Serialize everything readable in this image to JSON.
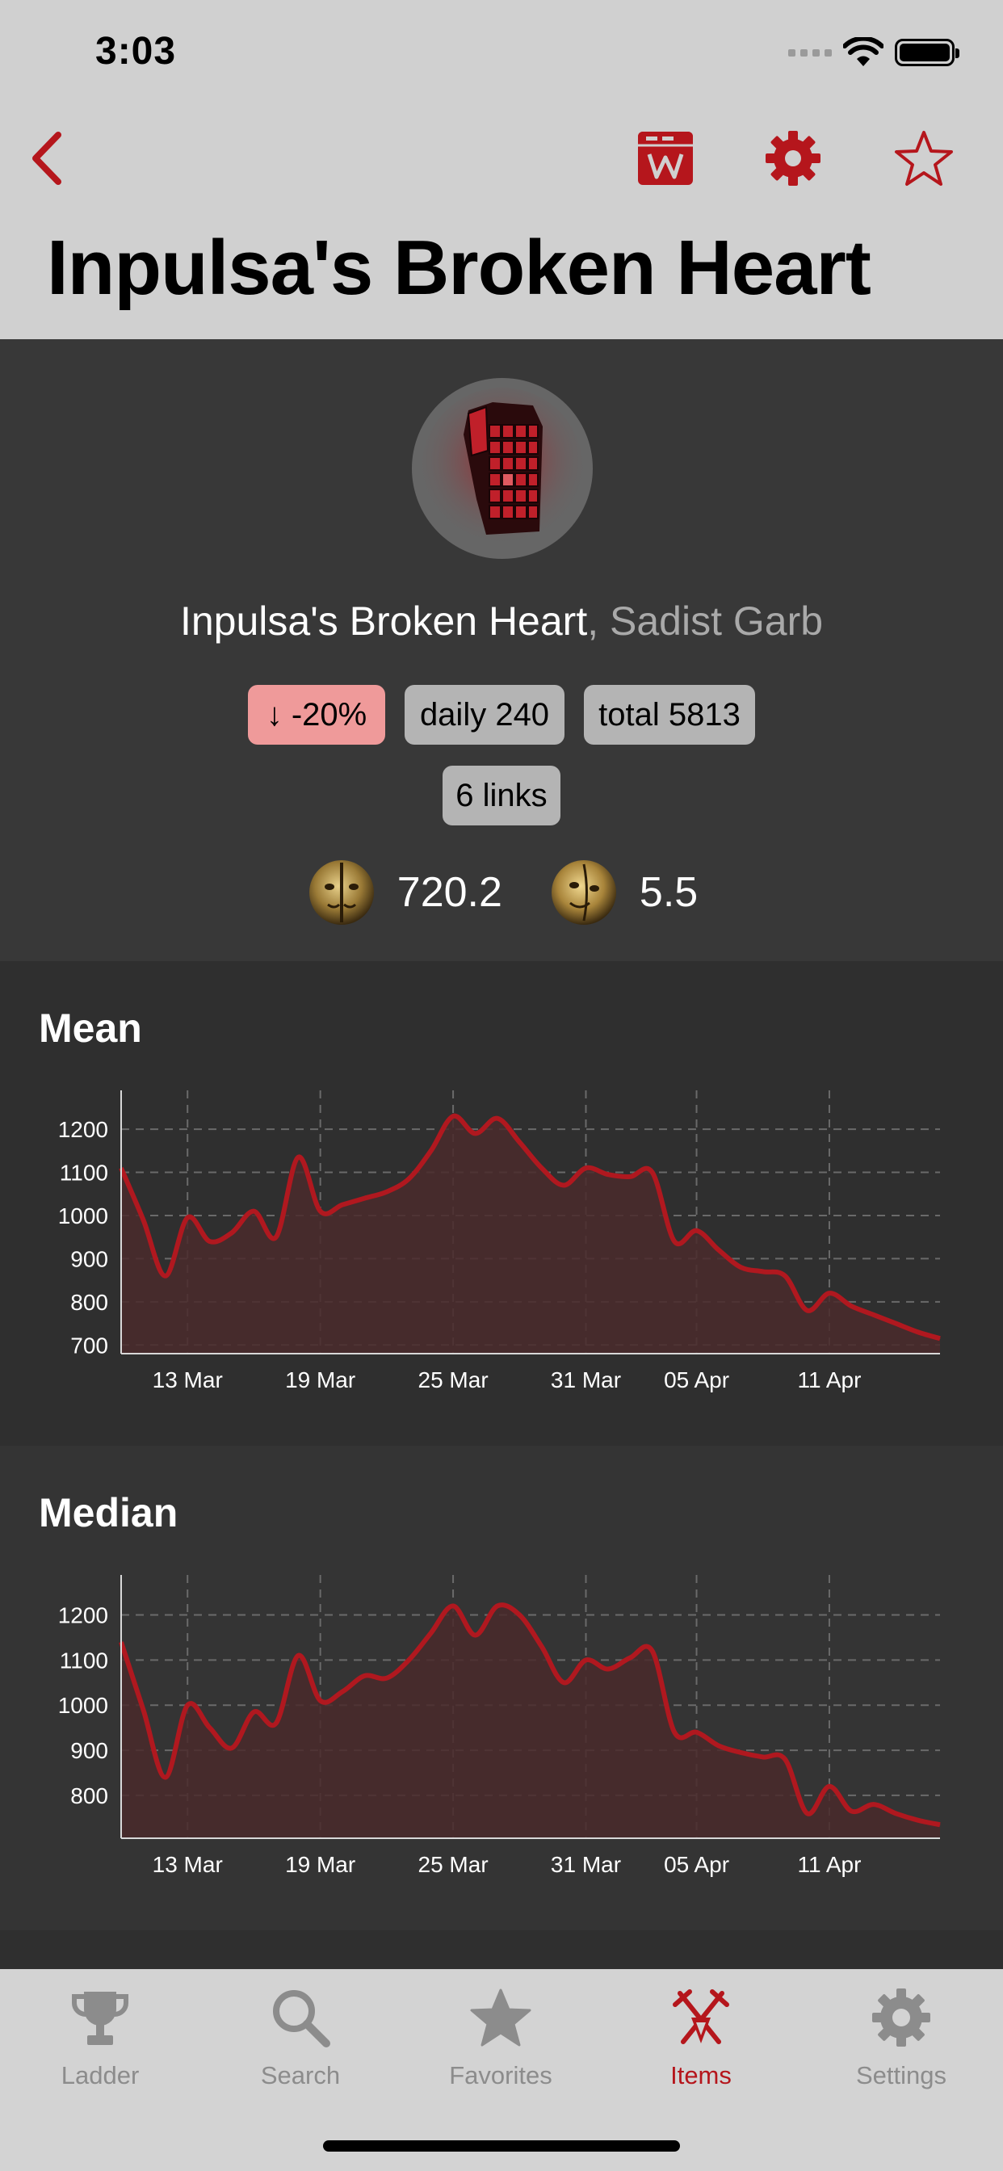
{
  "status_bar": {
    "time": "3:03"
  },
  "header": {
    "title": "Inpulsa's Broken Heart"
  },
  "item": {
    "name": "Inpulsa's Broken Heart",
    "separator": ", ",
    "base_type": "Sadist Garb",
    "badges": {
      "change": "↓ -20%",
      "daily": "daily 240",
      "total": "total 5813",
      "links": "6 links"
    },
    "prices": [
      {
        "icon": "divine-orb-icon",
        "value": "720.2"
      },
      {
        "icon": "exalted-orb-icon",
        "value": "5.5"
      }
    ]
  },
  "colors": {
    "accent": "#b5161c",
    "badge_down": "#ef9a9a",
    "line": "#b0181f",
    "area": "#4a2a2c"
  },
  "chart_data": [
    {
      "type": "area",
      "title": "Mean",
      "x": [
        "10 Mar",
        "11 Mar",
        "12 Mar",
        "13 Mar",
        "14 Mar",
        "15 Mar",
        "16 Mar",
        "17 Mar",
        "18 Mar",
        "19 Mar",
        "20 Mar",
        "21 Mar",
        "22 Mar",
        "23 Mar",
        "24 Mar",
        "25 Mar",
        "26 Mar",
        "27 Mar",
        "28 Mar",
        "29 Mar",
        "30 Mar",
        "31 Mar",
        "01 Apr",
        "02 Apr",
        "03 Apr",
        "04 Apr",
        "05 Apr",
        "06 Apr",
        "07 Apr",
        "08 Apr",
        "09 Apr",
        "10 Apr",
        "11 Apr",
        "12 Apr",
        "13 Apr",
        "14 Apr",
        "15 Apr",
        "16 Apr"
      ],
      "values": [
        1110,
        990,
        860,
        995,
        940,
        960,
        1010,
        950,
        1135,
        1010,
        1025,
        1040,
        1055,
        1085,
        1150,
        1230,
        1190,
        1225,
        1170,
        1110,
        1070,
        1110,
        1095,
        1090,
        1100,
        940,
        965,
        920,
        880,
        870,
        860,
        780,
        820,
        790,
        770,
        750,
        730,
        715
      ],
      "xticks": [
        "13 Mar",
        "19 Mar",
        "25 Mar",
        "31 Mar",
        "05 Apr",
        "11 Apr"
      ],
      "yticks": [
        700,
        800,
        900,
        1000,
        1100,
        1200
      ],
      "ylim": [
        680,
        1260
      ],
      "grid": true
    },
    {
      "type": "area",
      "title": "Median",
      "x": [
        "10 Mar",
        "11 Mar",
        "12 Mar",
        "13 Mar",
        "14 Mar",
        "15 Mar",
        "16 Mar",
        "17 Mar",
        "18 Mar",
        "19 Mar",
        "20 Mar",
        "21 Mar",
        "22 Mar",
        "23 Mar",
        "24 Mar",
        "25 Mar",
        "26 Mar",
        "27 Mar",
        "28 Mar",
        "29 Mar",
        "30 Mar",
        "31 Mar",
        "01 Apr",
        "02 Apr",
        "03 Apr",
        "04 Apr",
        "05 Apr",
        "06 Apr",
        "07 Apr",
        "08 Apr",
        "09 Apr",
        "10 Apr",
        "11 Apr",
        "12 Apr",
        "13 Apr",
        "14 Apr",
        "15 Apr",
        "16 Apr"
      ],
      "values": [
        1140,
        990,
        840,
        1000,
        950,
        905,
        985,
        960,
        1110,
        1010,
        1030,
        1065,
        1060,
        1100,
        1160,
        1220,
        1155,
        1220,
        1200,
        1130,
        1050,
        1100,
        1080,
        1105,
        1120,
        940,
        940,
        910,
        895,
        885,
        880,
        760,
        820,
        765,
        780,
        760,
        745,
        735
      ],
      "xticks": [
        "13 Mar",
        "19 Mar",
        "25 Mar",
        "31 Mar",
        "05 Apr",
        "11 Apr"
      ],
      "yticks": [
        800,
        900,
        1000,
        1100,
        1200
      ],
      "ylim": [
        705,
        1260
      ],
      "grid": true
    }
  ],
  "tabbar": {
    "tabs": [
      {
        "label": "Ladder",
        "icon": "trophy-icon"
      },
      {
        "label": "Search",
        "icon": "magnifier-icon"
      },
      {
        "label": "Favorites",
        "icon": "star-icon"
      },
      {
        "label": "Items",
        "icon": "crossed-swords-icon",
        "active": true
      },
      {
        "label": "Settings",
        "icon": "gear-icon"
      }
    ]
  }
}
